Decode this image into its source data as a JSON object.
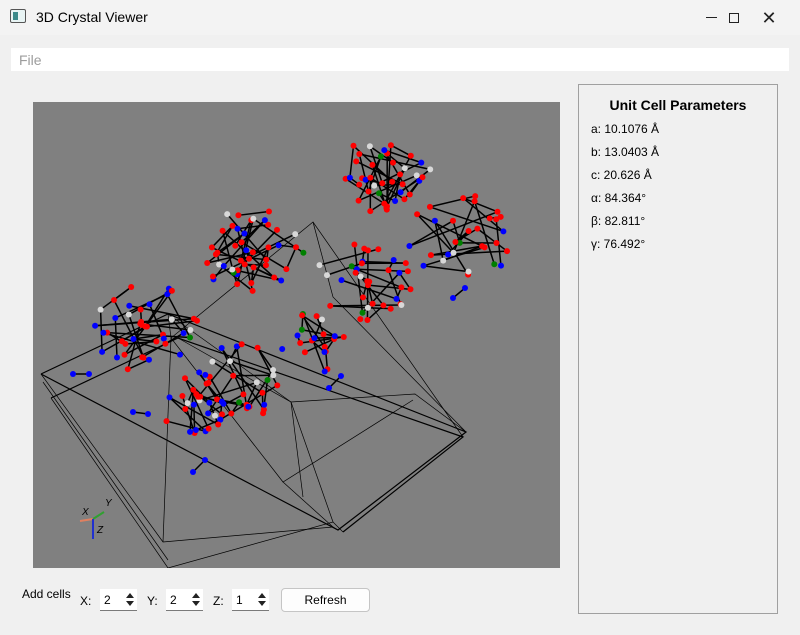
{
  "window": {
    "title": "3D Crystal Viewer"
  },
  "menu": {
    "file": "File"
  },
  "panel": {
    "title": "Unit Cell Parameters",
    "params": [
      "a: 10.1076 Å",
      "b: 13.0403 Å",
      "c: 20.626 Å",
      "α: 84.364°",
      "β: 82.811°",
      "γ: 76.492°"
    ]
  },
  "axes": {
    "x": "X",
    "y": "Y",
    "z": "Z"
  },
  "controls": {
    "add_cells_label": "Add cells",
    "x_label": "X:",
    "x_value": "2",
    "y_label": "Y:",
    "y_value": "2",
    "z_label": "Z:",
    "z_value": "1",
    "refresh_label": "Refresh"
  },
  "colors": {
    "viewport_bg": "#808080",
    "atom_red": "#ff0000",
    "atom_blue": "#0000ff",
    "atom_white": "#d8d8d8",
    "atom_green": "#008000",
    "bond": "#000000"
  }
}
